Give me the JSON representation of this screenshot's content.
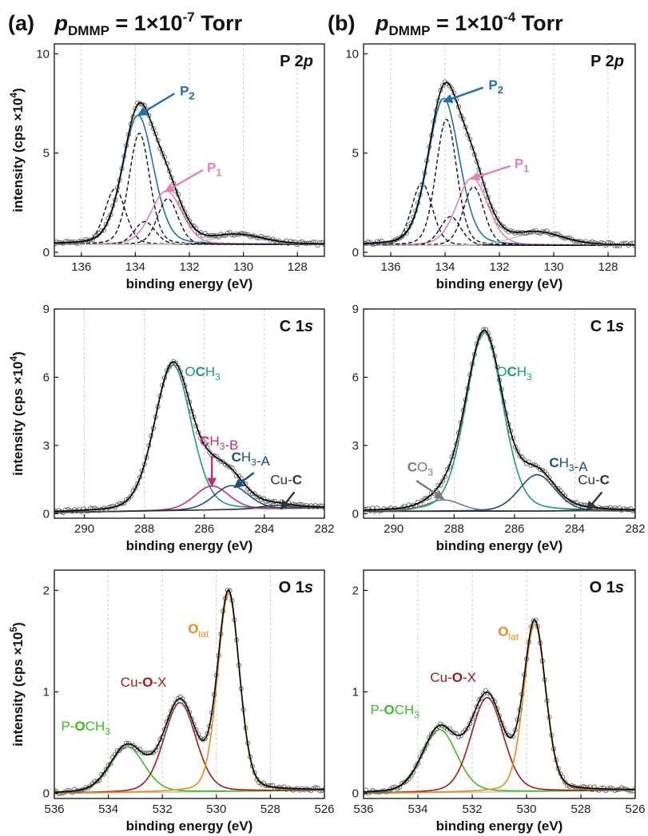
{
  "column_headers": [
    {
      "letter": "(a)",
      "p_label": "p",
      "p_subscript": "DMMP",
      "value_text": " = 1×10",
      "exponent": "-7",
      "unit": " Torr"
    },
    {
      "letter": "(b)",
      "p_label": "p",
      "p_subscript": "DMMP",
      "value_text": " = 1×10",
      "exponent": "-4",
      "unit": " Torr"
    }
  ],
  "colors": {
    "P2": "#1e6fb3",
    "P1": "#e57fb5",
    "OCH3_C": "#1a9e78",
    "CH3B": "#c0307a",
    "CH3A": "#1b4f7a",
    "CuC": "#333333",
    "CO3": "#7a7a7a",
    "POCH3": "#3bbf1f",
    "CuOX": "#a31919",
    "Olat": "#f08a15",
    "envelope": "#000000",
    "background_line": "#bdbdbd",
    "dashed": "#111111",
    "data_point": "#666666",
    "grid": "#bbbbbb"
  },
  "chart_data": [
    {
      "type": "line",
      "id": "a-P2p",
      "panel_label": "P 2p",
      "xlabel": "binding energy (eV)",
      "ylabel": "intensity (cps ×10^4)",
      "xlim": [
        137,
        127
      ],
      "ylim": [
        -0.2,
        10.5
      ],
      "xticks": [
        136,
        134,
        132,
        130,
        128
      ],
      "yticks": [
        0,
        5,
        10
      ],
      "background": {
        "kind": "shirley_like",
        "low": 0.4,
        "step": 0.0
      },
      "components": [
        {
          "key": "P2",
          "label": "P",
          "sub": "2",
          "center": 133.9,
          "height": 6.5,
          "width": 1.35,
          "style": "solid"
        },
        {
          "key": "P1",
          "label": "P",
          "sub": "1",
          "center": 132.85,
          "height": 2.7,
          "width": 1.35,
          "style": "solid"
        },
        {
          "name": "P2 3/2",
          "center": 133.85,
          "height": 5.6,
          "width": 0.9,
          "style": "dashed"
        },
        {
          "name": "P2 1/2",
          "center": 134.75,
          "height": 2.8,
          "width": 0.9,
          "style": "dashed"
        },
        {
          "name": "P1 3/2",
          "center": 132.8,
          "height": 2.3,
          "width": 0.9,
          "style": "dashed"
        },
        {
          "name": "P1 1/2",
          "center": 133.65,
          "height": 1.15,
          "width": 0.9,
          "style": "dashed"
        },
        {
          "name": "broad",
          "center": 130.2,
          "height": 0.45,
          "width": 2.2,
          "style": "grey"
        }
      ],
      "annotations": [
        {
          "key": "P2",
          "text": "P",
          "sub": "2",
          "color_key": "P2",
          "arrow_to": [
            133.9,
            6.9
          ],
          "arrow_from": [
            132.55,
            8.0
          ],
          "text_at": [
            132.35,
            7.9
          ]
        },
        {
          "key": "P1",
          "text": "P",
          "sub": "1",
          "color_key": "P1",
          "arrow_to": [
            132.9,
            3.05
          ],
          "arrow_from": [
            131.5,
            4.15
          ],
          "text_at": [
            131.35,
            4.05
          ]
        }
      ]
    },
    {
      "type": "line",
      "id": "b-P2p",
      "panel_label": "P 2p",
      "xlabel": "binding energy (eV)",
      "ylabel": "",
      "xlim": [
        137,
        127
      ],
      "ylim": [
        -0.2,
        10.5
      ],
      "xticks": [
        136,
        134,
        132,
        130,
        128
      ],
      "yticks": [
        0,
        5,
        10
      ],
      "background": {
        "kind": "shirley_like",
        "low": 0.35,
        "step": 0.0
      },
      "components": [
        {
          "key": "P2",
          "label": "P",
          "sub": "2",
          "center": 134.05,
          "height": 7.4,
          "width": 1.35,
          "style": "solid"
        },
        {
          "key": "P1",
          "label": "P",
          "sub": "1",
          "center": 133.0,
          "height": 3.4,
          "width": 1.35,
          "style": "solid"
        },
        {
          "name": "P2 3/2",
          "center": 133.95,
          "height": 6.35,
          "width": 0.9,
          "style": "dashed"
        },
        {
          "name": "P2 1/2",
          "center": 134.85,
          "height": 3.15,
          "width": 0.9,
          "style": "dashed"
        },
        {
          "name": "P1 3/2",
          "center": 132.95,
          "height": 2.95,
          "width": 0.9,
          "style": "dashed"
        },
        {
          "name": "P1 1/2",
          "center": 133.8,
          "height": 1.45,
          "width": 0.9,
          "style": "dashed"
        },
        {
          "name": "broad",
          "center": 130.6,
          "height": 0.6,
          "width": 2.2,
          "style": "grey"
        }
      ],
      "annotations": [
        {
          "key": "P2",
          "text": "P",
          "sub": "2",
          "color_key": "P2",
          "arrow_to": [
            134.05,
            7.6
          ],
          "arrow_from": [
            132.6,
            8.3
          ],
          "text_at": [
            132.4,
            8.2
          ]
        },
        {
          "key": "P1",
          "text": "P",
          "sub": "1",
          "color_key": "P1",
          "arrow_to": [
            133.05,
            3.7
          ],
          "arrow_from": [
            131.6,
            4.35
          ],
          "text_at": [
            131.45,
            4.25
          ]
        }
      ]
    },
    {
      "type": "line",
      "id": "a-C1s",
      "panel_label": "C 1s",
      "xlabel": "binding energy (eV)",
      "ylabel": "intensity (cps ×10^4)",
      "xlim": [
        291,
        282
      ],
      "ylim": [
        -0.2,
        9.0
      ],
      "xticks": [
        290,
        288,
        286,
        284,
        282
      ],
      "yticks": [
        0,
        3,
        6,
        9
      ],
      "background": {
        "kind": "linear",
        "low": 0.05,
        "high": 0.25
      },
      "components": [
        {
          "key": "OCH3_C",
          "center": 287.05,
          "height": 6.4,
          "width": 1.45,
          "style": "solid"
        },
        {
          "key": "CH3B",
          "center": 285.75,
          "height": 1.05,
          "width": 1.35,
          "style": "solid"
        },
        {
          "key": "CH3A",
          "center": 285.1,
          "height": 1.05,
          "width": 1.35,
          "style": "solid"
        },
        {
          "key": "CuC",
          "center": 283.6,
          "height": 0.15,
          "width": 1.3,
          "style": "solid"
        }
      ],
      "annotations": [
        {
          "key": "OCH3_C",
          "parts": [
            [
              "O",
              false
            ],
            [
              "C",
              true
            ],
            [
              "H",
              false
            ],
            [
              "3",
              "sub"
            ]
          ],
          "color_key": "OCH3_C",
          "text_at": [
            286.65,
            6.05
          ]
        },
        {
          "key": "CH3B",
          "parts": [
            [
              "C",
              true
            ],
            [
              "H",
              false
            ],
            [
              "3",
              "sub"
            ],
            [
              "-B",
              false
            ]
          ],
          "color_key": "CH3B",
          "arrow_to": [
            285.75,
            1.2
          ],
          "arrow_from": [
            285.75,
            2.55
          ],
          "text_at": [
            286.15,
            3.0
          ]
        },
        {
          "key": "CH3A",
          "parts": [
            [
              "C",
              true
            ],
            [
              "H",
              false
            ],
            [
              "3",
              "sub"
            ],
            [
              "-A",
              false
            ]
          ],
          "color_key": "CH3A",
          "arrow_to": [
            285.0,
            1.15
          ],
          "arrow_from": [
            284.35,
            1.8
          ],
          "text_at": [
            285.1,
            2.3
          ]
        },
        {
          "key": "CuC",
          "parts": [
            [
              "Cu-",
              false
            ],
            [
              "C",
              true
            ]
          ],
          "color_key": "CuC",
          "arrow_to": [
            283.45,
            0.2
          ],
          "arrow_from": [
            283.0,
            0.95
          ],
          "text_at": [
            283.8,
            1.3
          ]
        }
      ]
    },
    {
      "type": "line",
      "id": "b-C1s",
      "panel_label": "C 1s",
      "xlabel": "binding energy (eV)",
      "ylabel": "",
      "xlim": [
        291,
        282
      ],
      "ylim": [
        -0.2,
        9.0
      ],
      "xticks": [
        290,
        288,
        286,
        284,
        282
      ],
      "yticks": [
        0,
        3,
        6,
        9
      ],
      "background": {
        "kind": "linear",
        "low": 0.1,
        "high": 0.12
      },
      "components": [
        {
          "key": "CO3",
          "center": 288.35,
          "height": 0.5,
          "width": 1.35,
          "style": "solid"
        },
        {
          "key": "OCH3_C",
          "center": 287.0,
          "height": 7.85,
          "width": 1.45,
          "style": "solid"
        },
        {
          "key": "CH3A",
          "center": 285.25,
          "height": 1.6,
          "width": 1.4,
          "style": "solid"
        },
        {
          "key": "CuC",
          "center": 283.6,
          "height": 0.05,
          "width": 1.3,
          "style": "solid"
        }
      ],
      "annotations": [
        {
          "key": "OCH3_C",
          "parts": [
            [
              "O",
              false
            ],
            [
              "C",
              true
            ],
            [
              "H",
              false
            ],
            [
              "3",
              "sub"
            ]
          ],
          "color_key": "OCH3_C",
          "text_at": [
            286.6,
            6.05
          ]
        },
        {
          "key": "CH3A",
          "parts": [
            [
              "C",
              true
            ],
            [
              "H",
              false
            ],
            [
              "3",
              "sub"
            ],
            [
              "-A",
              false
            ]
          ],
          "color_key": "CH3A",
          "text_at": [
            284.85,
            2.05
          ]
        },
        {
          "key": "CO3",
          "parts": [
            [
              "C",
              true
            ],
            [
              "O",
              false
            ],
            [
              "3",
              "sub"
            ]
          ],
          "color_key": "CO3",
          "arrow_to": [
            288.35,
            0.65
          ],
          "arrow_from": [
            289.25,
            1.45
          ],
          "text_at": [
            289.55,
            1.85
          ]
        },
        {
          "key": "CuC",
          "parts": [
            [
              "Cu-",
              false
            ],
            [
              "C",
              true
            ]
          ],
          "color_key": "CuC",
          "arrow_to": [
            283.6,
            0.15
          ],
          "arrow_from": [
            283.1,
            0.95
          ],
          "text_at": [
            283.9,
            1.3
          ]
        }
      ]
    },
    {
      "type": "line",
      "id": "a-O1s",
      "panel_label": "O 1s",
      "xlabel": "binding energy (eV)",
      "ylabel": "intensity (cps ×10^5)",
      "xlim": [
        536,
        526
      ],
      "ylim": [
        -0.05,
        2.2
      ],
      "xticks": [
        536,
        534,
        532,
        530,
        528,
        526
      ],
      "yticks": [
        0,
        1,
        2
      ],
      "background": {
        "kind": "linear",
        "low": 0.0,
        "high": 0.03
      },
      "components": [
        {
          "key": "POCH3",
          "center": 533.3,
          "height": 0.45,
          "width": 1.5,
          "style": "solid"
        },
        {
          "key": "CuOX",
          "center": 531.35,
          "height": 0.88,
          "width": 1.4,
          "style": "solid"
        },
        {
          "key": "Olat",
          "center": 529.55,
          "height": 1.95,
          "width": 0.95,
          "style": "solid"
        }
      ],
      "annotations": [
        {
          "key": "POCH3",
          "parts": [
            [
              "P-",
              false
            ],
            [
              "O",
              true
            ],
            [
              "CH",
              false
            ],
            [
              "3",
              "sub"
            ]
          ],
          "color_key": "POCH3",
          "text_at": [
            535.75,
            0.62
          ]
        },
        {
          "key": "CuOX",
          "parts": [
            [
              "Cu-",
              false
            ],
            [
              "O",
              true
            ],
            [
              "-X",
              false
            ]
          ],
          "color_key": "CuOX",
          "text_at": [
            533.55,
            1.05
          ]
        },
        {
          "key": "Olat",
          "parts": [
            [
              "O",
              true
            ],
            [
              "lat",
              "sub"
            ]
          ],
          "color_key": "Olat",
          "text_at": [
            531.05,
            1.58
          ]
        }
      ]
    },
    {
      "type": "line",
      "id": "b-O1s",
      "panel_label": "O 1s",
      "xlabel": "binding energy (eV)",
      "ylabel": "",
      "xlim": [
        536,
        526
      ],
      "ylim": [
        -0.05,
        2.2
      ],
      "xticks": [
        536,
        534,
        532,
        530,
        528,
        526
      ],
      "yticks": [
        0,
        1,
        2
      ],
      "background": {
        "kind": "linear",
        "low": 0.0,
        "high": 0.03
      },
      "components": [
        {
          "key": "POCH3",
          "center": 533.2,
          "height": 0.62,
          "width": 1.5,
          "style": "solid"
        },
        {
          "key": "CuOX",
          "center": 531.45,
          "height": 0.93,
          "width": 1.4,
          "style": "solid"
        },
        {
          "key": "Olat",
          "center": 529.7,
          "height": 1.65,
          "width": 0.95,
          "style": "solid"
        }
      ],
      "annotations": [
        {
          "key": "POCH3",
          "parts": [
            [
              "P-",
              false
            ],
            [
              "O",
              true
            ],
            [
              "CH",
              false
            ],
            [
              "3",
              "sub"
            ]
          ],
          "color_key": "POCH3",
          "text_at": [
            535.75,
            0.78
          ]
        },
        {
          "key": "CuOX",
          "parts": [
            [
              "Cu-",
              false
            ],
            [
              "O",
              true
            ],
            [
              "-X",
              false
            ]
          ],
          "color_key": "CuOX",
          "text_at": [
            533.55,
            1.1
          ]
        },
        {
          "key": "Olat",
          "parts": [
            [
              "O",
              true
            ],
            [
              "lat",
              "sub"
            ]
          ],
          "color_key": "Olat",
          "text_at": [
            531.05,
            1.55
          ]
        }
      ]
    }
  ]
}
